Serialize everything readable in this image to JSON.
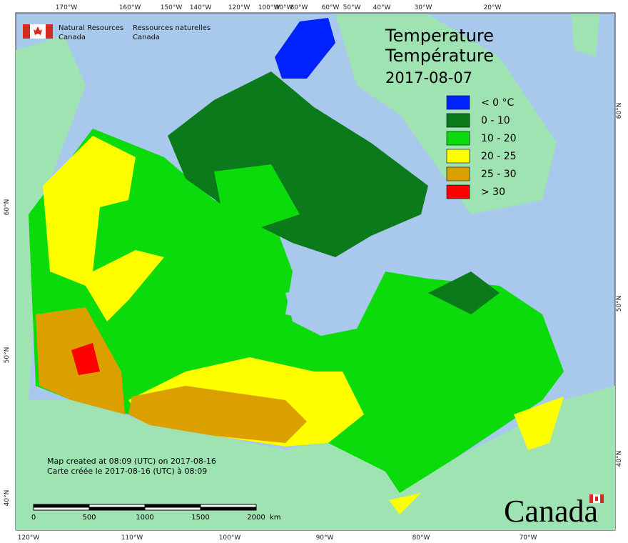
{
  "header": {
    "agency_en": [
      "Natural Resources",
      "Canada"
    ],
    "agency_fr": [
      "Ressources naturelles",
      "Canada"
    ]
  },
  "title": {
    "en": "Temperature",
    "fr": "Température",
    "date": "2017-08-07"
  },
  "legend": [
    {
      "label": "< 0 °C",
      "color": "#0022ff"
    },
    {
      "label": "0 - 10",
      "color": "#0a7a1a"
    },
    {
      "label": "10 - 20",
      "color": "#0bdb0b"
    },
    {
      "label": "20 - 25",
      "color": "#ffff00"
    },
    {
      "label": "25 - 30",
      "color": "#dba000"
    },
    {
      "label": "> 30",
      "color": "#ff0000"
    }
  ],
  "graticule": {
    "top": [
      "170°W",
      "160°W",
      "150°W",
      "140°W",
      "120°W",
      "100°W",
      "90°W",
      "80°W",
      "60°W",
      "50°W",
      "40°W",
      "30°W",
      "20°W"
    ],
    "bottom": [
      "120°W",
      "110°W",
      "100°W",
      "90°W",
      "80°W",
      "70°W"
    ],
    "left": [
      "60°N",
      "50°N",
      "40°N"
    ],
    "right": [
      "60°N",
      "50°N",
      "40°N"
    ]
  },
  "notes": [
    "Map created at 08:09 (UTC) on 2017-08-16",
    "Carte créée le 2017-08-16 (UTC) à 08:09"
  ],
  "scale_bar": {
    "labels": [
      "0",
      "500",
      "1000",
      "1500",
      "2000"
    ],
    "unit": "km"
  },
  "wordmark": "Canada"
}
